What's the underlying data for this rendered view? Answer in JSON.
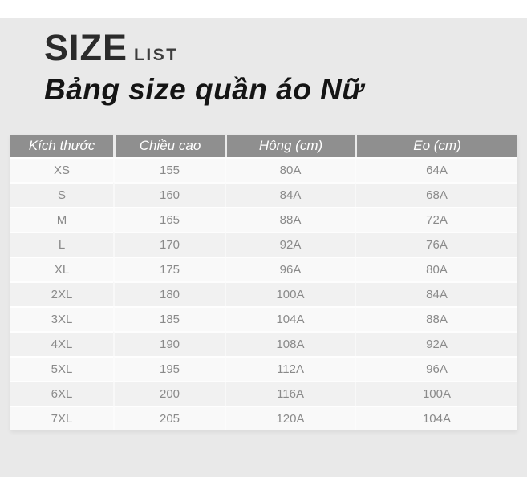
{
  "header": {
    "title_main": "SIZE",
    "title_sub": "LIST",
    "subtitle": "Bảng size quần áo Nữ"
  },
  "table": {
    "columns": [
      "Kích thước",
      "Chiều cao",
      "Hông (cm)",
      "Eo (cm)"
    ],
    "rows": [
      [
        "XS",
        "155",
        "80A",
        "64A"
      ],
      [
        "S",
        "160",
        "84A",
        "68A"
      ],
      [
        "M",
        "165",
        "88A",
        "72A"
      ],
      [
        "L",
        "170",
        "92A",
        "76A"
      ],
      [
        "XL",
        "175",
        "96A",
        "80A"
      ],
      [
        "2XL",
        "180",
        "100A",
        "84A"
      ],
      [
        "3XL",
        "185",
        "104A",
        "88A"
      ],
      [
        "4XL",
        "190",
        "108A",
        "92A"
      ],
      [
        "5XL",
        "195",
        "112A",
        "96A"
      ],
      [
        "6XL",
        "200",
        "116A",
        "100A"
      ],
      [
        "7XL",
        "205",
        "120A",
        "104A"
      ]
    ]
  },
  "colors": {
    "panel_bg": "#e9e9e9",
    "page_bg": "#ffffff",
    "header_bg": "#8f8f8f",
    "header_text": "#ffffff",
    "row_light": "#f9f9f9",
    "row_dark": "#f1f1f1",
    "cell_text": "#8a8a8a",
    "title_text": "#2b2b2b"
  },
  "chart_data": {
    "type": "table",
    "title": "Bảng size quần áo Nữ",
    "subtitle_brand": "SIZE LIST",
    "columns": [
      "Kích thước",
      "Chiều cao",
      "Hông (cm)",
      "Eo (cm)"
    ],
    "rows": [
      [
        "XS",
        155,
        "80A",
        "64A"
      ],
      [
        "S",
        160,
        "84A",
        "68A"
      ],
      [
        "M",
        165,
        "88A",
        "72A"
      ],
      [
        "L",
        170,
        "92A",
        "76A"
      ],
      [
        "XL",
        175,
        "96A",
        "80A"
      ],
      [
        "2XL",
        180,
        "100A",
        "84A"
      ],
      [
        "3XL",
        185,
        "104A",
        "88A"
      ],
      [
        "4XL",
        190,
        "108A",
        "92A"
      ],
      [
        "5XL",
        195,
        "112A",
        "96A"
      ],
      [
        "6XL",
        200,
        "116A",
        "100A"
      ],
      [
        "7XL",
        205,
        "120A",
        "104A"
      ]
    ],
    "layout": {
      "header_style": "gray-bar-white-italic-text",
      "row_striping": "alternating light/dark, first row light",
      "alignment": "all cells centered"
    }
  }
}
